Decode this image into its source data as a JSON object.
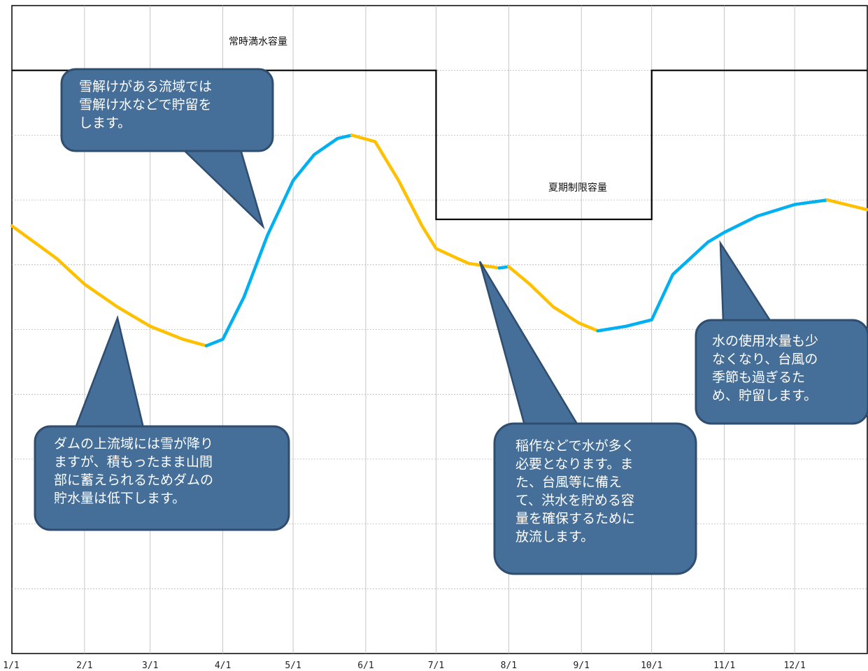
{
  "chart_data": {
    "type": "line",
    "title": "",
    "xlabel": "",
    "ylabel": "",
    "x_ticks": [
      "1/1",
      "2/1",
      "3/1",
      "4/1",
      "5/1",
      "6/1",
      "7/1",
      "8/1",
      "9/1",
      "10/1",
      "11/1",
      "12/1"
    ],
    "y_gridlines": 9,
    "grid": true,
    "y_tick_labels_shown": false,
    "colors": {
      "storage": "#ffc000",
      "release": "#00b0f0",
      "capacity": "#000000",
      "callout_fill": "#456f98",
      "callout_border": "#2e4d6f",
      "grid": "#b8b8b8"
    },
    "capacity_labels": {
      "normal": "常時満水容量",
      "summer": "夏期制限容量"
    },
    "capacity_series": {
      "name": "capacity",
      "points": [
        [
          "1/1",
          9.0
        ],
        [
          "7/1",
          9.0
        ],
        [
          "7/1",
          6.7
        ],
        [
          "10/1",
          6.7
        ],
        [
          "10/1",
          9.0
        ],
        [
          "12/31",
          9.0
        ]
      ]
    },
    "storage_series": {
      "name": "storage",
      "segments": [
        {
          "color": "storage",
          "points": [
            [
              "1/1",
              6.6
            ],
            [
              "1/20",
              6.1
            ],
            [
              "2/1",
              5.7
            ],
            [
              "2/15",
              5.35
            ],
            [
              "3/1",
              5.05
            ],
            [
              "3/15",
              4.85
            ],
            [
              "3/25",
              4.75
            ]
          ]
        },
        {
          "color": "release",
          "points": [
            [
              "3/25",
              4.75
            ],
            [
              "4/1",
              4.85
            ],
            [
              "4/10",
              5.5
            ],
            [
              "4/20",
              6.45
            ],
            [
              "5/1",
              7.3
            ],
            [
              "5/10",
              7.7
            ],
            [
              "5/20",
              7.95
            ],
            [
              "5/26",
              8.0
            ]
          ]
        },
        {
          "color": "storage",
          "points": [
            [
              "5/26",
              8.0
            ],
            [
              "6/5",
              7.9
            ],
            [
              "6/15",
              7.3
            ],
            [
              "6/25",
              6.6
            ],
            [
              "7/1",
              6.25
            ],
            [
              "7/10",
              6.1
            ],
            [
              "7/15",
              6.02
            ],
            [
              "7/28",
              5.95
            ]
          ]
        },
        {
          "color": "release",
          "points": [
            [
              "7/28",
              5.95
            ],
            [
              "8/1",
              5.97
            ]
          ]
        },
        {
          "color": "storage",
          "points": [
            [
              "8/1",
              5.97
            ],
            [
              "8/10",
              5.7
            ],
            [
              "8/20",
              5.35
            ],
            [
              "8/31",
              5.1
            ],
            [
              "9/8",
              4.98
            ]
          ]
        },
        {
          "color": "release",
          "points": [
            [
              "9/8",
              4.98
            ],
            [
              "9/20",
              5.05
            ],
            [
              "10/1",
              5.15
            ],
            [
              "10/10",
              5.85
            ],
            [
              "10/25",
              6.35
            ],
            [
              "11/1",
              6.5
            ],
            [
              "11/15",
              6.75
            ],
            [
              "12/1",
              6.93
            ],
            [
              "12/15",
              7.0
            ]
          ]
        },
        {
          "color": "storage",
          "points": [
            [
              "12/15",
              7.0
            ],
            [
              "12/31",
              6.85
            ]
          ]
        }
      ]
    }
  },
  "callouts": {
    "snowmelt": "雪解けがある流域では\n雪解け水などで貯留を\nします。",
    "winter": "ダムの上流域には雪が降り\nますが、積もったまま山間\n部に蓄えられるためダムの\n貯水量は低下します。",
    "summer": "稲作などで水が多く\n必要となります。ま\nた、台風等に備え\nて、洪水を貯める容\n量を確保するために\n放流します。",
    "autumn": "水の使用水量も少\nなくなり、台風の\n季節も過ぎるた\nめ、貯留します。"
  }
}
